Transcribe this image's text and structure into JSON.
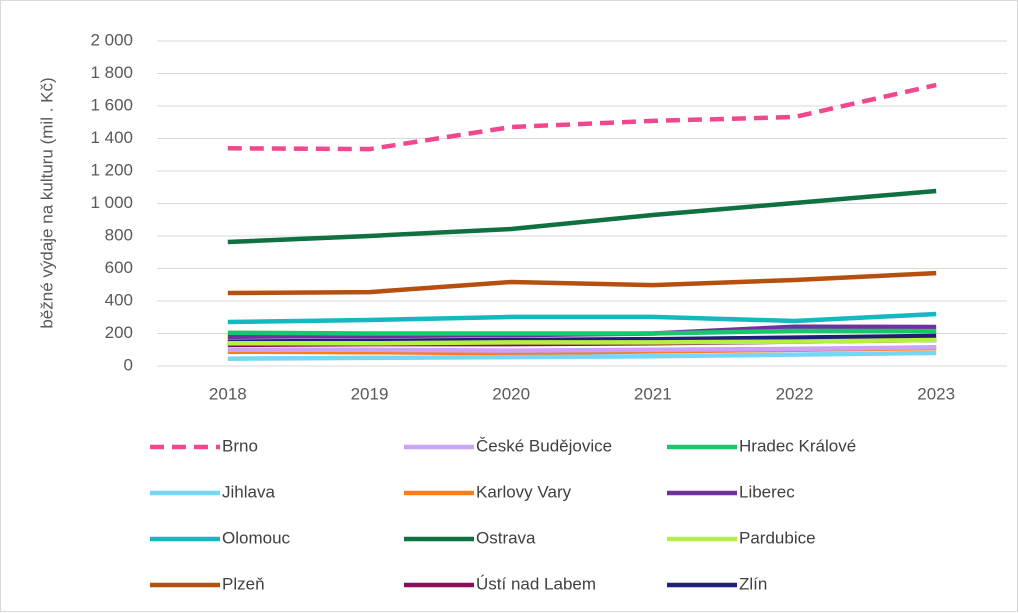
{
  "chart_data": {
    "type": "line",
    "y_label": "běžné výdaje na kulturu (mil . Kč)",
    "categories": [
      "2018",
      "2019",
      "2020",
      "2021",
      "2022",
      "2023"
    ],
    "ylim": [
      0,
      2000
    ],
    "yticks": [
      0,
      200,
      400,
      600,
      800,
      {
        "value": 1000,
        "label": "1 000"
      },
      {
        "value": 1200,
        "label": "1 200"
      },
      {
        "value": 1400,
        "label": "1 400"
      },
      {
        "value": 1600,
        "label": "1 600"
      },
      {
        "value": 1800,
        "label": "1 800"
      },
      {
        "value": 2000,
        "label": "2 000"
      }
    ],
    "grid": true,
    "legend": "bottom",
    "series": [
      {
        "name": "Brno",
        "color": "#f0478f",
        "style": "dashed",
        "values": [
          1340,
          1335,
          1471,
          1508,
          1532,
          1729
        ]
      },
      {
        "name": "České Budějovice",
        "color": "#c9a3f5",
        "style": "solid",
        "values": [
          100,
          100,
          95,
          100,
          105,
          115
        ]
      },
      {
        "name": "Hradec Králové",
        "color": "#17c86a",
        "style": "solid",
        "values": [
          205,
          200,
          200,
          200,
          216,
          215
        ]
      },
      {
        "name": "Jihlava",
        "color": "#76d6f5",
        "style": "solid",
        "values": [
          45,
          50,
          55,
          60,
          70,
          80
        ]
      },
      {
        "name": "Karlovy Vary",
        "color": "#fb7d1b",
        "style": "solid",
        "values": [
          88,
          85,
          78,
          90,
          100,
          110
        ]
      },
      {
        "name": "Liberec",
        "color": "#7030a0",
        "style": "solid",
        "values": [
          180,
          185,
          190,
          200,
          242,
          240
        ]
      },
      {
        "name": "Olomouc",
        "color": "#14b8bf",
        "style": "solid",
        "values": [
          271,
          283,
          302,
          302,
          277,
          320
        ]
      },
      {
        "name": "Ostrava",
        "color": "#0f7040",
        "style": "solid",
        "values": [
          763,
          800,
          843,
          929,
          1003,
          1077
        ]
      },
      {
        "name": "Pardubice",
        "color": "#b6f043",
        "style": "solid",
        "values": [
          140,
          140,
          145,
          145,
          150,
          160
        ]
      },
      {
        "name": "Plzeň",
        "color": "#b5500e",
        "style": "solid",
        "values": [
          449,
          455,
          517,
          498,
          529,
          572
        ]
      },
      {
        "name": "Ústí nad Labem",
        "color": "#8b0a5a",
        "style": "solid",
        "values": [
          130,
          135,
          135,
          140,
          150,
          160
        ]
      },
      {
        "name": "Zlín",
        "color": "#1f1f7a",
        "style": "solid",
        "values": [
          150,
          155,
          160,
          165,
          175,
          185
        ]
      }
    ]
  }
}
